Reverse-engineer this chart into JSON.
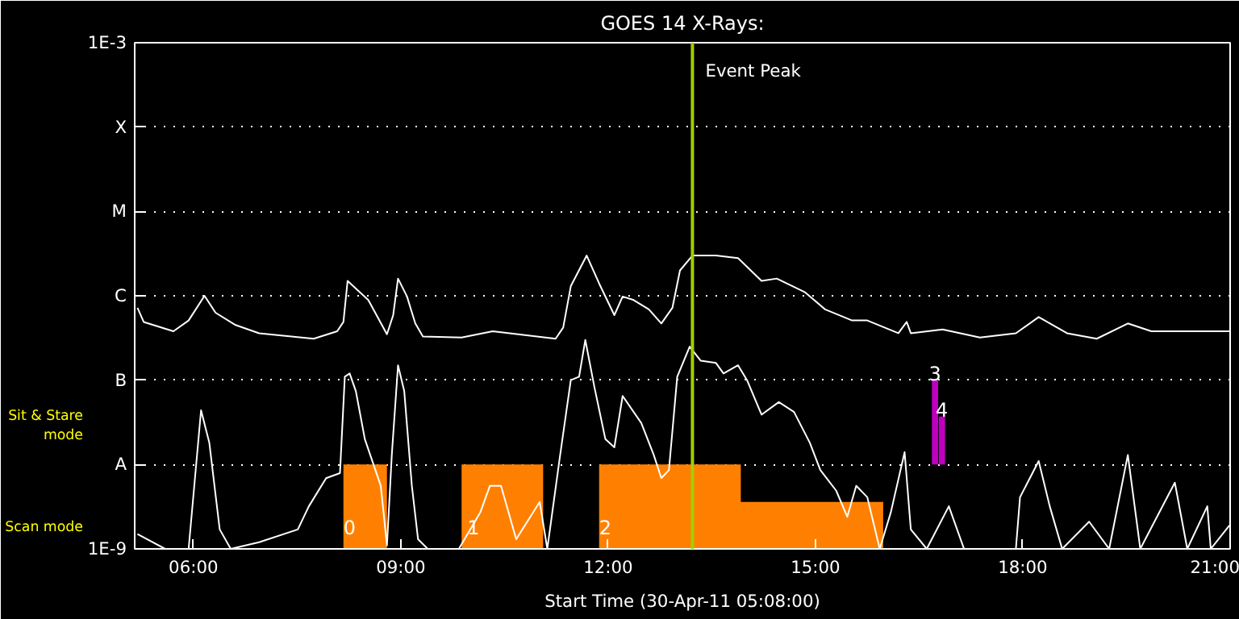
{
  "chart_data": {
    "type": "line",
    "title": "GOES 14 X-Rays:",
    "xlabel": "Start Time (30-Apr-11 05:08:00)",
    "log": "y",
    "grid": "y",
    "xlim": [
      5.15,
      21.0
    ],
    "ylim": [
      1e-09,
      0.001
    ],
    "xticks": [
      {
        "value": 6,
        "label": "06:00"
      },
      {
        "value": 9,
        "label": "09:00"
      },
      {
        "value": 12,
        "label": "12:00"
      },
      {
        "value": 15,
        "label": "15:00"
      },
      {
        "value": 18,
        "label": "18:00"
      },
      {
        "value": 21,
        "label": "21:00"
      }
    ],
    "yticks": [
      {
        "value": 1e-09,
        "label": "1E-9"
      },
      {
        "value": 1e-08,
        "label": "A"
      },
      {
        "value": 1e-07,
        "label": "B"
      },
      {
        "value": 1e-06,
        "label": "C"
      },
      {
        "value": 1e-05,
        "label": "M"
      },
      {
        "value": 0.0001,
        "label": "X"
      },
      {
        "value": 0.001,
        "label": "1E-3"
      }
    ],
    "series": [
      {
        "type": "area",
        "color": "#ff8000",
        "x": [
          8.17,
          8.8,
          null,
          9.88,
          11.06,
          null,
          11.87,
          13.92,
          13.92,
          15.98
        ],
        "values": [
          1e-08,
          1e-08,
          null,
          1e-08,
          1e-08,
          null,
          1e-08,
          1e-08,
          3.6e-09,
          3.6e-09
        ]
      },
      {
        "type": "bar",
        "color": "#c000c0",
        "x": [
          16.73,
          16.83
        ],
        "base": [
          1e-08,
          1e-08
        ],
        "values": [
          9e-08,
          2.7e-08
        ]
      },
      {
        "color": "#ffffff",
        "x": [
          5.19,
          5.28,
          5.71,
          5.93,
          6.16,
          6.32,
          6.61,
          6.95,
          7.74,
          8.08,
          8.17,
          8.23,
          8.53,
          8.8,
          8.89,
          8.96,
          9.09,
          9.21,
          9.32,
          9.88,
          10.33,
          11.24,
          11.35,
          11.46,
          11.69,
          11.87,
          12.09,
          12.21,
          12.37,
          12.59,
          12.77,
          12.93,
          13.04,
          13.22,
          13.56,
          13.88,
          14.22,
          14.44,
          14.85,
          15.14,
          15.53,
          15.75,
          16.2,
          16.32,
          16.38,
          16.84,
          17.38,
          17.9,
          18.23,
          18.64,
          19.07,
          19.52,
          19.86,
          20.72,
          20.99
        ],
        "values": [
          7.2e-07,
          4.9e-07,
          3.8e-07,
          5.1e-07,
          1e-06,
          6.3e-07,
          4.5e-07,
          3.6e-07,
          3.1e-07,
          3.8e-07,
          4.9e-07,
          1.5e-06,
          8.9e-07,
          3.5e-07,
          5.9e-07,
          1.6e-06,
          9.8e-07,
          4.7e-07,
          3.3e-07,
          3.2e-07,
          3.8e-07,
          3.1e-07,
          4.2e-07,
          1.3e-06,
          3e-06,
          1.4e-06,
          5.9e-07,
          9.8e-07,
          8.9e-07,
          6.9e-07,
          4.7e-07,
          7.2e-07,
          2e-06,
          3e-06,
          3e-06,
          2.8e-06,
          1.5e-06,
          1.6e-06,
          1.1e-06,
          6.9e-07,
          5.1e-07,
          5.1e-07,
          3.6e-07,
          4.9e-07,
          3.6e-07,
          4e-07,
          3.2e-07,
          3.6e-07,
          5.6e-07,
          3.6e-07,
          3.1e-07,
          4.7e-07,
          3.8e-07,
          3.8e-07,
          3.8e-07
        ]
      },
      {
        "color": "#ffffff",
        "x": [
          5.19,
          5.59,
          5.93,
          6.11,
          6.23,
          6.38,
          6.54,
          6.95,
          7.51,
          7.67,
          7.92,
          8.12,
          8.19,
          8.26,
          8.35,
          8.48,
          8.71,
          8.8,
          8.87,
          8.96,
          9.05,
          9.16,
          9.25,
          9.39,
          9.84,
          10.15,
          10.29,
          10.45,
          10.67,
          11.01,
          11.12,
          11.3,
          11.46,
          11.58,
          11.67,
          11.8,
          11.96,
          12.09,
          12.21,
          12.48,
          12.66,
          12.77,
          12.88,
          13.0,
          13.18,
          13.34,
          13.56,
          13.67,
          13.88,
          14.01,
          14.22,
          14.47,
          14.69,
          14.92,
          15.07,
          15.3,
          15.46,
          15.59,
          15.75,
          15.93,
          16.09,
          16.29,
          16.38,
          16.61,
          16.93,
          17.15,
          17.9,
          17.96,
          18.23,
          18.39,
          18.57,
          18.96,
          19.25,
          19.52,
          19.7,
          20.2,
          20.38,
          20.67,
          20.72,
          20.99
        ],
        "values": [
          1.5e-09,
          1e-09,
          1e-09,
          4.4e-08,
          1.8e-08,
          1.7e-09,
          1e-09,
          1.2e-09,
          1.7e-09,
          3.2e-09,
          6.9e-09,
          7.9e-09,
          1.1e-07,
          1.2e-07,
          7.4e-08,
          2e-08,
          5.6e-09,
          1.1e-09,
          1.3e-08,
          1.5e-07,
          7.4e-08,
          5.6e-09,
          1.3e-09,
          1e-09,
          1e-09,
          2.7e-09,
          5.6e-09,
          5.6e-09,
          1.3e-09,
          3.6e-09,
          1e-09,
          1.2e-08,
          1e-07,
          1.1e-07,
          3e-07,
          8.4e-08,
          2e-08,
          1.6e-08,
          6.5e-08,
          3.1e-08,
          1.3e-08,
          6.9e-09,
          8.6e-09,
          1.1e-07,
          2.5e-07,
          1.7e-07,
          1.6e-07,
          1.2e-07,
          1.5e-07,
          1e-07,
          3.9e-08,
          5.5e-08,
          4.2e-08,
          1.8e-08,
          8.6e-09,
          4.9e-09,
          2.4e-09,
          5.6e-09,
          4.1e-09,
          1e-09,
          2.7e-09,
          1.4e-08,
          1.7e-09,
          1e-09,
          3.2e-09,
          1e-09,
          1e-09,
          4.1e-09,
          1.1e-08,
          3.2e-09,
          1e-09,
          2.1e-09,
          1e-09,
          1.3e-08,
          1e-09,
          6.1e-09,
          1e-09,
          3.2e-09,
          1e-09,
          1.9e-09
        ]
      }
    ],
    "ref_lines": [
      {
        "axis": "x",
        "value": 13.22,
        "label": "Event Peak",
        "color": "#a0d000"
      }
    ],
    "annotations": [
      {
        "text": "0",
        "x": 8.26,
        "y": 1.5e-09
      },
      {
        "text": "1",
        "x": 10.05,
        "y": 1.5e-09
      },
      {
        "text": "2",
        "x": 11.96,
        "y": 1.5e-09
      },
      {
        "text": "3",
        "x": 16.73,
        "y": 1e-07
      },
      {
        "text": "4",
        "x": 16.83,
        "y": 3.7e-08
      },
      "Sit & Stare mode",
      "Scan mode"
    ]
  }
}
